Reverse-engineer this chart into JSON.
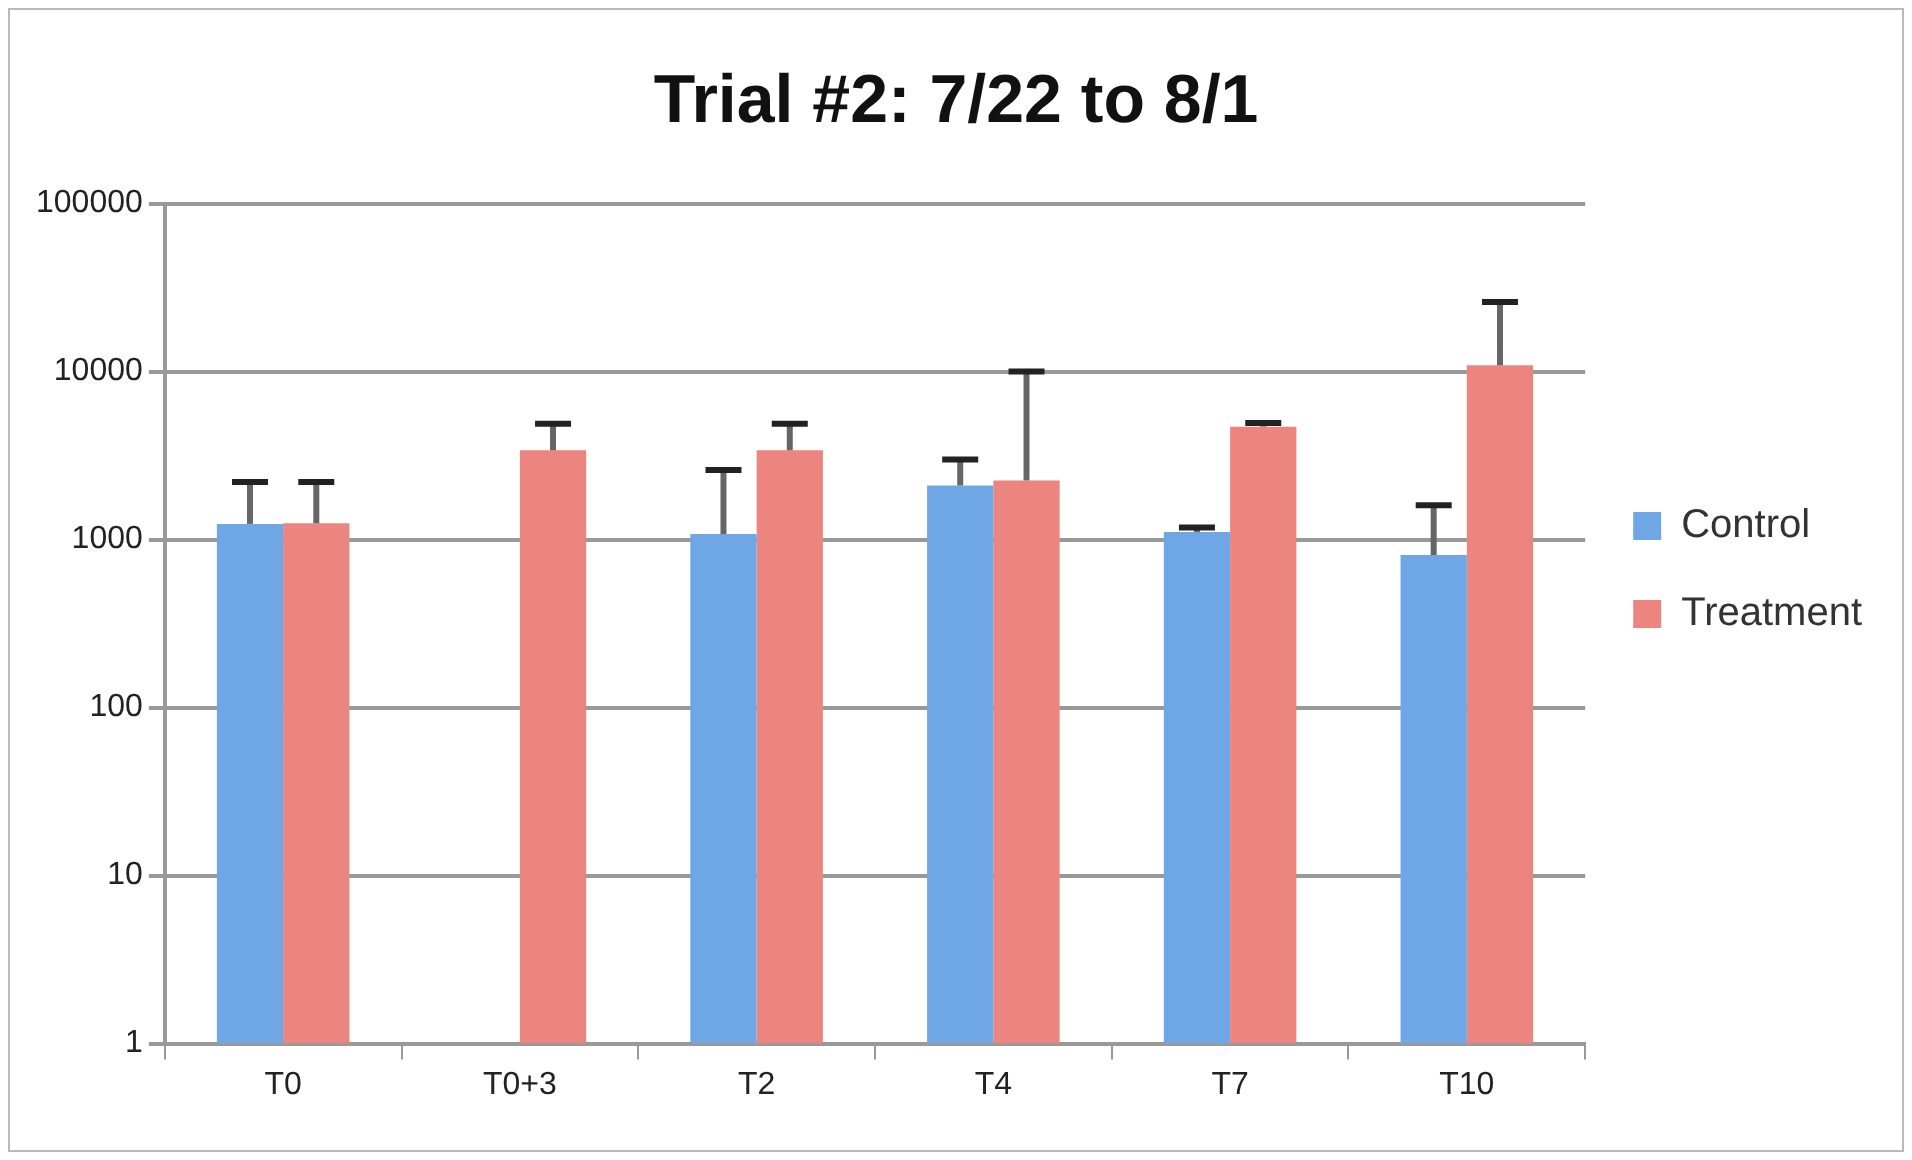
{
  "chart_data": {
    "type": "bar",
    "title": "Trial #2: 7/22 to 8/1",
    "categories": [
      "T0",
      "T0+3",
      "T2",
      "T4",
      "T7",
      "T10"
    ],
    "series": [
      {
        "name": "Control",
        "color": "#6fa6e6",
        "values": [
          1240,
          null,
          1080,
          2100,
          1110,
          810
        ],
        "errors": [
          [
            1240,
            2200
          ],
          null,
          [
            1080,
            2600
          ],
          [
            2100,
            3000
          ],
          [
            1110,
            1180
          ],
          [
            810,
            1600
          ]
        ]
      },
      {
        "name": "Treatment",
        "color": "#ec8580",
        "values": [
          1250,
          3400,
          3400,
          2250,
          4700,
          10900
        ],
        "errors": [
          [
            1250,
            2200
          ],
          [
            3400,
            4900
          ],
          [
            3400,
            4900
          ],
          [
            2250,
            10000
          ],
          [
            4700,
            4950
          ],
          [
            10900,
            26000
          ]
        ]
      }
    ],
    "log": "y",
    "ylim": [
      1,
      100000
    ],
    "yticks": [
      1,
      10,
      100,
      1000,
      10000,
      100000
    ],
    "grid": "y",
    "legend": "right"
  }
}
